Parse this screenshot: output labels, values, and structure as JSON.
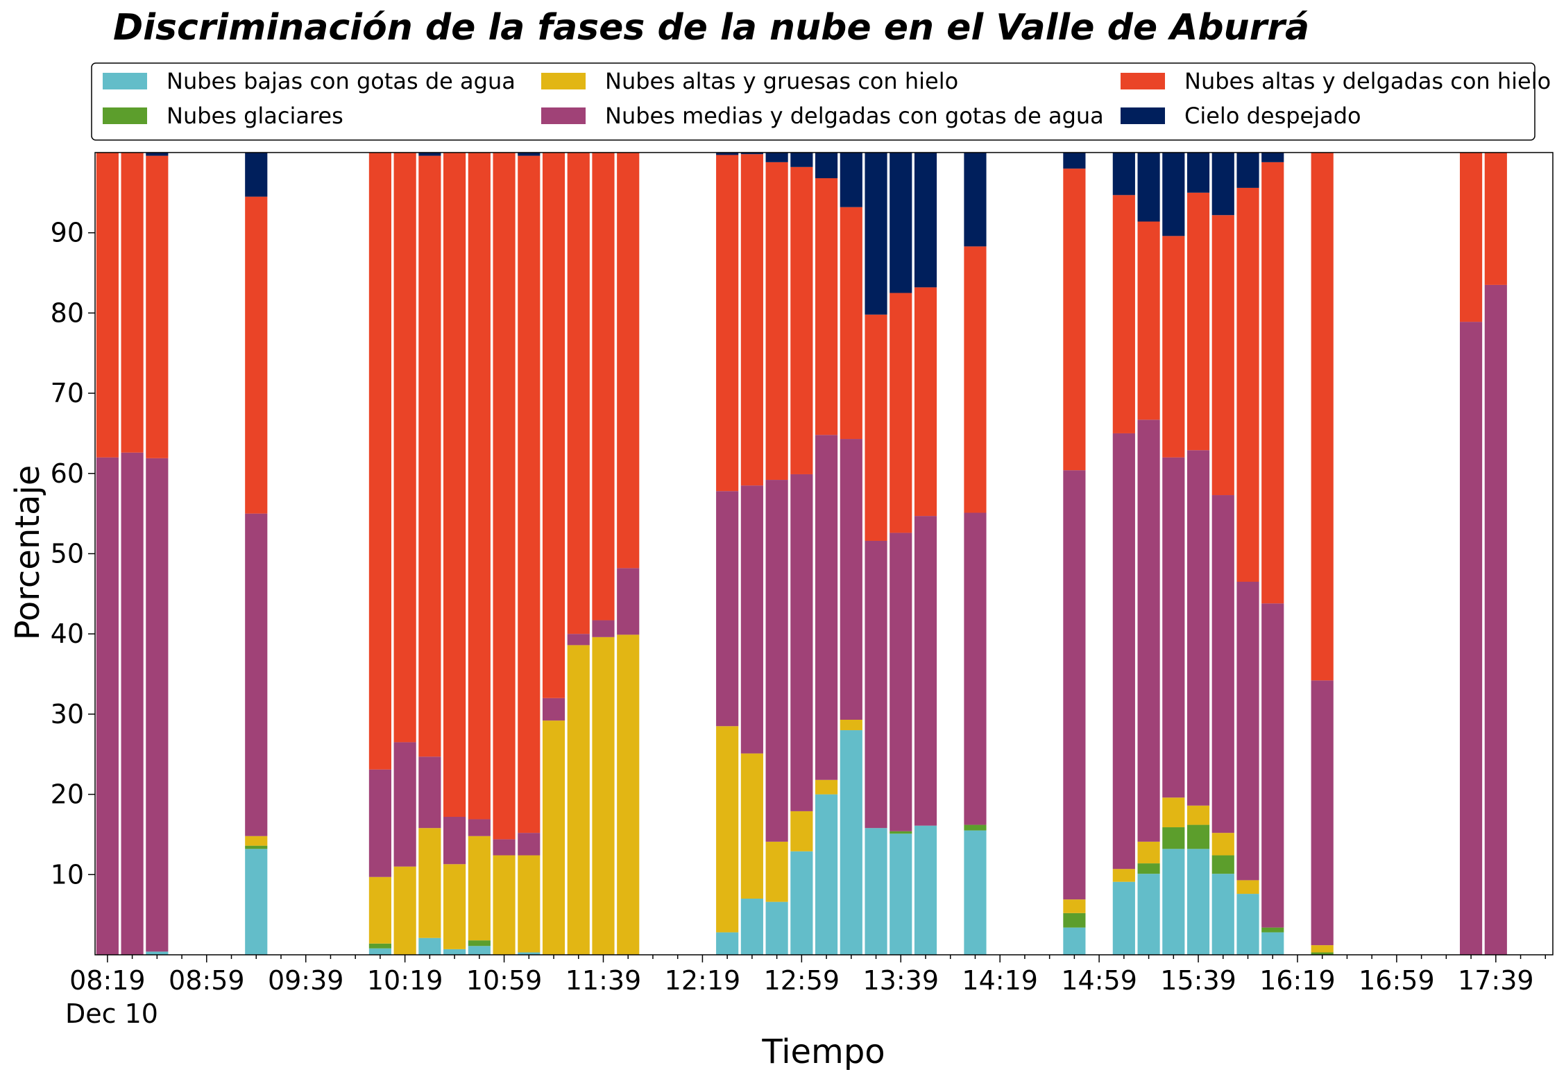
{
  "chart_data": {
    "type": "bar",
    "stacked": true,
    "title": "Discriminación de la fases de la nube en el Valle de Aburrá",
    "xlabel": "Tiempo",
    "ylabel": "Porcentaje",
    "ylim": [
      0,
      100
    ],
    "yticks": [
      10,
      20,
      30,
      40,
      50,
      60,
      70,
      80,
      90
    ],
    "x_tick_labels": [
      "08:19",
      "08:59",
      "09:39",
      "10:19",
      "10:59",
      "11:39",
      "12:19",
      "12:59",
      "13:39",
      "14:19",
      "14:59",
      "15:39",
      "16:19",
      "16:59",
      "17:39"
    ],
    "x_date_label": "Dec 10",
    "x_slot_range": [
      -0.5,
      58.3
    ],
    "legend_position": "top",
    "legend_columns": 3,
    "grid": false,
    "series": [
      {
        "name": "Nubes bajas con gotas de agua",
        "color": "#63bdc9"
      },
      {
        "name": "Nubes glaciares",
        "color": "#5c9e2c"
      },
      {
        "name": "Nubes altas y gruesas con hielo",
        "color": "#e2b614"
      },
      {
        "name": "Nubes medias y delgadas con gotas de agua",
        "color": "#a04277"
      },
      {
        "name": "Nubes altas y delgadas con hielo",
        "color": "#ea4427"
      },
      {
        "name": "Cielo despejado",
        "color": "#001f5c"
      }
    ],
    "bars": [
      {
        "slot": 0,
        "values": [
          0,
          0,
          0,
          62,
          38,
          0
        ]
      },
      {
        "slot": 1,
        "values": [
          0,
          0,
          0,
          62.6,
          37.4,
          0
        ]
      },
      {
        "slot": 2,
        "values": [
          0.4,
          0,
          0,
          61.5,
          37.7,
          0.4
        ]
      },
      {
        "slot": 6,
        "values": [
          13.2,
          0.4,
          1.2,
          40.2,
          39.5,
          5.5
        ]
      },
      {
        "slot": 11,
        "values": [
          0.8,
          0.6,
          8.3,
          13.4,
          76.9,
          0
        ]
      },
      {
        "slot": 12,
        "values": [
          0,
          0,
          11,
          15.5,
          73.5,
          0
        ]
      },
      {
        "slot": 13,
        "values": [
          2.1,
          0,
          13.7,
          8.9,
          74.9,
          0.4
        ]
      },
      {
        "slot": 14,
        "values": [
          0.7,
          0,
          10.6,
          5.9,
          82.8,
          0
        ]
      },
      {
        "slot": 15,
        "values": [
          1.1,
          0.7,
          13,
          2.1,
          83.1,
          0
        ]
      },
      {
        "slot": 16,
        "values": [
          0,
          0,
          12.4,
          2,
          85.6,
          0
        ]
      },
      {
        "slot": 17,
        "values": [
          0.3,
          0,
          12.1,
          2.8,
          84.4,
          0.4
        ]
      },
      {
        "slot": 18,
        "values": [
          0,
          0,
          29.2,
          2.8,
          68,
          0
        ]
      },
      {
        "slot": 19,
        "values": [
          0,
          0,
          38.6,
          1.4,
          60,
          0
        ]
      },
      {
        "slot": 20,
        "values": [
          0,
          0,
          39.6,
          2.1,
          58.3,
          0
        ]
      },
      {
        "slot": 21,
        "values": [
          0,
          0,
          39.9,
          8.3,
          51.8,
          0
        ]
      },
      {
        "slot": 25,
        "values": [
          2.8,
          0,
          25.7,
          29.3,
          41.9,
          0.3
        ]
      },
      {
        "slot": 26,
        "values": [
          7,
          0,
          18.1,
          33.4,
          41.3,
          0.2
        ]
      },
      {
        "slot": 27,
        "values": [
          6.6,
          0,
          7.5,
          45.1,
          39.6,
          1.2
        ]
      },
      {
        "slot": 28,
        "values": [
          12.9,
          0,
          5,
          42,
          38.3,
          1.8
        ]
      },
      {
        "slot": 29,
        "values": [
          20,
          0,
          1.8,
          43,
          32,
          3.2
        ]
      },
      {
        "slot": 30,
        "values": [
          28,
          0,
          1.3,
          35,
          28.9,
          6.8
        ]
      },
      {
        "slot": 31,
        "values": [
          15.8,
          0,
          0,
          35.8,
          28.2,
          20.2
        ]
      },
      {
        "slot": 32,
        "values": [
          15.1,
          0.3,
          0,
          37.2,
          29.9,
          17.5
        ]
      },
      {
        "slot": 33,
        "values": [
          16.1,
          0,
          0,
          38.6,
          28.5,
          16.8
        ]
      },
      {
        "slot": 35,
        "values": [
          15.5,
          0.7,
          0,
          38.9,
          33.2,
          11.7
        ]
      },
      {
        "slot": 39,
        "values": [
          3.4,
          1.8,
          1.7,
          53.5,
          37.6,
          2
        ]
      },
      {
        "slot": 41,
        "values": [
          9.1,
          0,
          1.6,
          54.3,
          29.7,
          5.3
        ]
      },
      {
        "slot": 42,
        "values": [
          10.1,
          1.3,
          2.7,
          52.6,
          24.7,
          8.6
        ]
      },
      {
        "slot": 43,
        "values": [
          13.2,
          2.7,
          3.7,
          42.4,
          27.6,
          10.4
        ]
      },
      {
        "slot": 44,
        "values": [
          13.2,
          3,
          2.4,
          44.3,
          32.1,
          5
        ]
      },
      {
        "slot": 45,
        "values": [
          10.1,
          2.3,
          2.8,
          42.1,
          34.9,
          7.8
        ]
      },
      {
        "slot": 46,
        "values": [
          7.6,
          0,
          1.7,
          37.2,
          49.1,
          4.4
        ]
      },
      {
        "slot": 47,
        "values": [
          2.8,
          0.6,
          0,
          40.4,
          55,
          1.2
        ]
      },
      {
        "slot": 49,
        "values": [
          0,
          0.3,
          0.9,
          33,
          65.8,
          0
        ]
      },
      {
        "slot": 55,
        "values": [
          0,
          0,
          0,
          78.9,
          21.1,
          0
        ]
      },
      {
        "slot": 56,
        "values": [
          0,
          0,
          0,
          83.5,
          16.5,
          0
        ]
      }
    ]
  }
}
